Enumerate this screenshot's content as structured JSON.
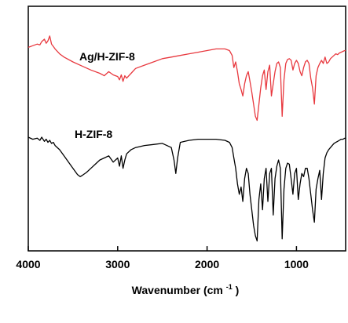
{
  "chart_data": {
    "type": "line",
    "xlabel_main": "Wavenumber",
    "xlabel_unit_open": "(cm",
    "xlabel_unit_sup": "-1",
    "xlabel_unit_close": ")",
    "xlim": [
      4000,
      450
    ],
    "x_reversed": true,
    "ylabel": "",
    "yaxis_ticks": false,
    "x_ticks": [
      {
        "value": 4000,
        "label": "4000"
      },
      {
        "value": 3000,
        "label": "3000"
      },
      {
        "value": 2000,
        "label": "2000"
      },
      {
        "value": 1000,
        "label": "1000"
      }
    ],
    "grid": false,
    "legend": "inline labels",
    "series": [
      {
        "name": "Ag/H-ZIF-8",
        "color": "#e8393f",
        "offset": 0.0,
        "x": [
          4000,
          3950,
          3900,
          3870,
          3850,
          3820,
          3800,
          3780,
          3760,
          3740,
          3720,
          3700,
          3650,
          3600,
          3500,
          3400,
          3300,
          3200,
          3150,
          3100,
          3050,
          3000,
          2980,
          2960,
          2940,
          2920,
          2900,
          2850,
          2800,
          2700,
          2600,
          2500,
          2400,
          2300,
          2200,
          2100,
          2000,
          1900,
          1800,
          1750,
          1720,
          1700,
          1680,
          1660,
          1640,
          1620,
          1600,
          1580,
          1560,
          1540,
          1520,
          1500,
          1480,
          1460,
          1440,
          1420,
          1400,
          1380,
          1360,
          1340,
          1320,
          1300,
          1280,
          1260,
          1240,
          1220,
          1200,
          1180,
          1160,
          1140,
          1120,
          1100,
          1080,
          1060,
          1040,
          1020,
          1000,
          980,
          960,
          940,
          920,
          900,
          880,
          860,
          840,
          820,
          800,
          780,
          760,
          740,
          720,
          700,
          680,
          660,
          640,
          620,
          600,
          580,
          560,
          540,
          520,
          500,
          480,
          460,
          450
        ],
        "y": [
          0.1,
          0.08,
          0.06,
          0.07,
          0.03,
          0.0,
          0.05,
          0.02,
          -0.04,
          0.06,
          0.09,
          0.12,
          0.18,
          0.22,
          0.28,
          0.33,
          0.38,
          0.42,
          0.45,
          0.4,
          0.44,
          0.46,
          0.5,
          0.44,
          0.52,
          0.45,
          0.48,
          0.42,
          0.36,
          0.32,
          0.28,
          0.24,
          0.22,
          0.2,
          0.18,
          0.16,
          0.14,
          0.12,
          0.12,
          0.14,
          0.2,
          0.35,
          0.28,
          0.4,
          0.55,
          0.62,
          0.7,
          0.55,
          0.45,
          0.4,
          0.52,
          0.65,
          0.8,
          0.95,
          1.0,
          0.8,
          0.6,
          0.45,
          0.38,
          0.62,
          0.4,
          0.32,
          0.7,
          0.55,
          0.4,
          0.3,
          0.28,
          0.35,
          0.95,
          0.5,
          0.3,
          0.25,
          0.24,
          0.26,
          0.38,
          0.3,
          0.26,
          0.3,
          0.4,
          0.45,
          0.35,
          0.28,
          0.26,
          0.3,
          0.48,
          0.6,
          0.8,
          0.45,
          0.35,
          0.3,
          0.26,
          0.3,
          0.22,
          0.3,
          0.28,
          0.24,
          0.22,
          0.2,
          0.18,
          0.19,
          0.17,
          0.16,
          0.15,
          0.14,
          0.14
        ]
      },
      {
        "name": "H-ZIF-8",
        "color": "#000000",
        "offset": 0.0,
        "x": [
          4000,
          3950,
          3900,
          3870,
          3850,
          3820,
          3800,
          3780,
          3760,
          3740,
          3720,
          3700,
          3650,
          3600,
          3550,
          3500,
          3450,
          3420,
          3400,
          3350,
          3300,
          3250,
          3200,
          3150,
          3100,
          3050,
          3000,
          2980,
          2960,
          2940,
          2920,
          2900,
          2850,
          2800,
          2700,
          2600,
          2500,
          2450,
          2400,
          2370,
          2350,
          2330,
          2300,
          2250,
          2200,
          2100,
          2000,
          1900,
          1800,
          1750,
          1720,
          1700,
          1680,
          1660,
          1640,
          1620,
          1600,
          1580,
          1560,
          1540,
          1520,
          1500,
          1480,
          1460,
          1440,
          1420,
          1400,
          1380,
          1360,
          1340,
          1320,
          1300,
          1280,
          1260,
          1240,
          1220,
          1200,
          1180,
          1160,
          1140,
          1120,
          1100,
          1080,
          1060,
          1040,
          1020,
          1000,
          980,
          960,
          940,
          920,
          900,
          880,
          860,
          840,
          820,
          800,
          780,
          760,
          740,
          720,
          700,
          680,
          660,
          640,
          620,
          600,
          580,
          560,
          540,
          520,
          500,
          480,
          460,
          450
        ],
        "y": [
          0.0,
          0.02,
          0.01,
          0.03,
          0.0,
          0.04,
          0.02,
          0.05,
          0.03,
          0.06,
          0.05,
          0.08,
          0.12,
          0.18,
          0.24,
          0.3,
          0.36,
          0.38,
          0.37,
          0.34,
          0.3,
          0.26,
          0.22,
          0.2,
          0.18,
          0.24,
          0.2,
          0.28,
          0.18,
          0.3,
          0.22,
          0.16,
          0.12,
          0.1,
          0.08,
          0.07,
          0.06,
          0.08,
          0.1,
          0.22,
          0.35,
          0.2,
          0.05,
          0.04,
          0.03,
          0.02,
          0.02,
          0.02,
          0.03,
          0.05,
          0.1,
          0.2,
          0.3,
          0.45,
          0.55,
          0.48,
          0.62,
          0.4,
          0.3,
          0.35,
          0.55,
          0.7,
          0.85,
          0.95,
          1.0,
          0.6,
          0.45,
          0.7,
          0.4,
          0.3,
          0.62,
          0.35,
          0.3,
          0.75,
          0.4,
          0.28,
          0.22,
          0.3,
          0.98,
          0.5,
          0.3,
          0.25,
          0.26,
          0.4,
          0.55,
          0.35,
          0.3,
          0.6,
          0.45,
          0.35,
          0.38,
          0.3,
          0.3,
          0.4,
          0.55,
          0.7,
          0.82,
          0.5,
          0.4,
          0.32,
          0.6,
          0.35,
          0.2,
          0.15,
          0.12,
          0.1,
          0.08,
          0.06,
          0.05,
          0.04,
          0.03,
          0.02,
          0.02,
          0.01,
          0.01
        ]
      }
    ]
  }
}
